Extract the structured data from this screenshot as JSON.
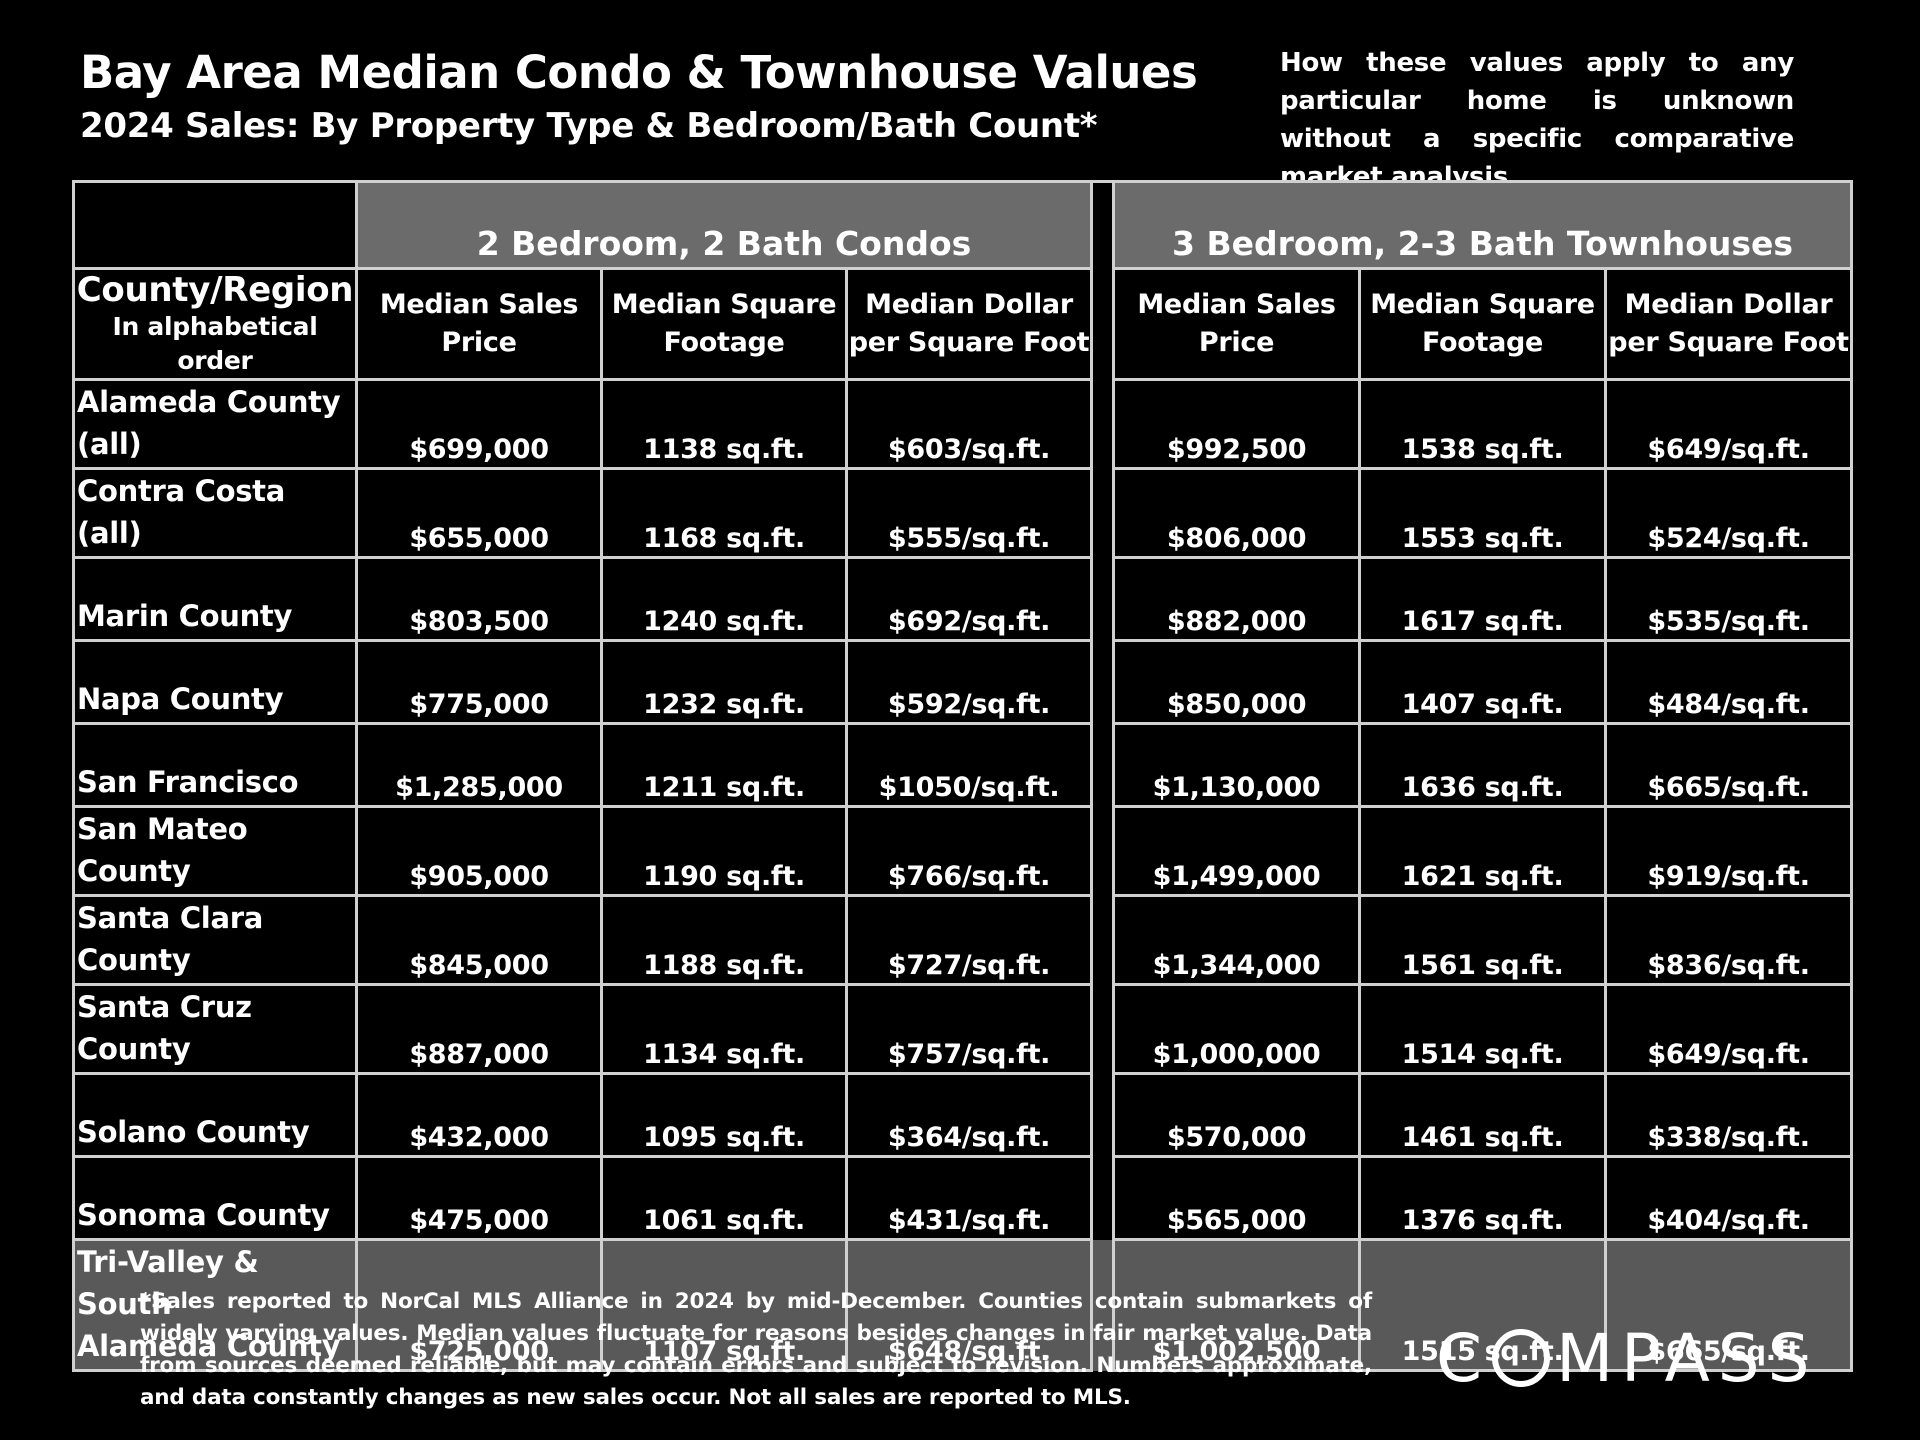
{
  "header": {
    "title": "Bay Area Median Condo & Townhouse Values",
    "subtitle": "2024 Sales:  By Property Type & Bedroom/Bath Count*",
    "disclaimer": "How these values apply to any particular home is unknown without a specific comparative market analysis."
  },
  "table": {
    "group_condos": "2 Bedroom, 2 Bath Condos",
    "group_townhouses": "3 Bedroom, 2-3 Bath Townhouses",
    "region_header": "County/Region",
    "region_subheader": "In alphabetical order",
    "col_price_1": "Median Sales",
    "col_price_2": "Price",
    "col_sqft_1": "Median Square",
    "col_sqft_2": "Footage",
    "col_ppsf_1": "Median Dollar",
    "col_ppsf_2": "per Square Foot",
    "rows": [
      {
        "region_line1": "Alameda County",
        "region_line2": "(all)",
        "c_price": "$699,000",
        "c_sqft": "1138 sq.ft.",
        "c_ppsf": "$603/sq.ft.",
        "t_price": "$992,500",
        "t_sqft": "1538 sq.ft.",
        "t_ppsf": "$649/sq.ft."
      },
      {
        "region_line1": "Contra Costa (all)",
        "region_line2": "",
        "c_price": "$655,000",
        "c_sqft": "1168 sq.ft.",
        "c_ppsf": "$555/sq.ft.",
        "t_price": "$806,000",
        "t_sqft": "1553 sq.ft.",
        "t_ppsf": "$524/sq.ft."
      },
      {
        "region_line1": "Marin County",
        "region_line2": "",
        "c_price": "$803,500",
        "c_sqft": "1240 sq.ft.",
        "c_ppsf": "$692/sq.ft.",
        "t_price": "$882,000",
        "t_sqft": "1617 sq.ft.",
        "t_ppsf": "$535/sq.ft."
      },
      {
        "region_line1": "Napa County",
        "region_line2": "",
        "c_price": "$775,000",
        "c_sqft": "1232 sq.ft.",
        "c_ppsf": "$592/sq.ft.",
        "t_price": "$850,000",
        "t_sqft": "1407 sq.ft.",
        "t_ppsf": "$484/sq.ft."
      },
      {
        "region_line1": "San Francisco",
        "region_line2": "",
        "c_price": "$1,285,000",
        "c_sqft": "1211 sq.ft.",
        "c_ppsf": "$1050/sq.ft.",
        "t_price": "$1,130,000",
        "t_sqft": "1636 sq.ft.",
        "t_ppsf": "$665/sq.ft."
      },
      {
        "region_line1": "San Mateo County",
        "region_line2": "",
        "c_price": "$905,000",
        "c_sqft": "1190 sq.ft.",
        "c_ppsf": "$766/sq.ft.",
        "t_price": "$1,499,000",
        "t_sqft": "1621 sq.ft.",
        "t_ppsf": "$919/sq.ft."
      },
      {
        "region_line1": "Santa Clara County",
        "region_line2": "",
        "c_price": "$845,000",
        "c_sqft": "1188 sq.ft.",
        "c_ppsf": "$727/sq.ft.",
        "t_price": "$1,344,000",
        "t_sqft": "1561 sq.ft.",
        "t_ppsf": "$836/sq.ft."
      },
      {
        "region_line1": "Santa Cruz County",
        "region_line2": "",
        "c_price": "$887,000",
        "c_sqft": "1134 sq.ft.",
        "c_ppsf": "$757/sq.ft.",
        "t_price": "$1,000,000",
        "t_sqft": "1514 sq.ft.",
        "t_ppsf": "$649/sq.ft."
      },
      {
        "region_line1": "Solano County",
        "region_line2": "",
        "c_price": "$432,000",
        "c_sqft": "1095 sq.ft.",
        "c_ppsf": "$364/sq.ft.",
        "t_price": "$570,000",
        "t_sqft": "1461 sq.ft.",
        "t_ppsf": "$338/sq.ft."
      },
      {
        "region_line1": "Sonoma County",
        "region_line2": "",
        "c_price": "$475,000",
        "c_sqft": "1061 sq.ft.",
        "c_ppsf": "$431/sq.ft.",
        "t_price": "$565,000",
        "t_sqft": "1376 sq.ft.",
        "t_ppsf": "$404/sq.ft."
      },
      {
        "region_line1": "Tri-Valley & South",
        "region_line2": "Alameda County",
        "c_price": "$725,000",
        "c_sqft": "1107 sq.ft.",
        "c_ppsf": "$648/sq.ft.",
        "t_price": "$1,002,500",
        "t_sqft": "1515 sq.ft.",
        "t_ppsf": "$665/sq.ft."
      }
    ]
  },
  "footnote": "*Sales reported to NorCal MLS Alliance in 2024 by mid-December. Counties contain submarkets of widely varying values. Median values fluctuate for reasons besides changes in fair market value. Data from sources deemed reliable, but may contain errors and subject to revision.  Numbers approximate, and data constantly changes as new sales occur. Not all sales are reported to MLS.",
  "logo": {
    "text": "COMPASS",
    "prefix": "C",
    "suffix": "MPASS"
  },
  "colors": {
    "background": "#000000",
    "text": "#ffffff",
    "header_fill": "#6b6b6b",
    "highlight_row_fill": "#595959",
    "grid_line": "#d0d0d0"
  }
}
